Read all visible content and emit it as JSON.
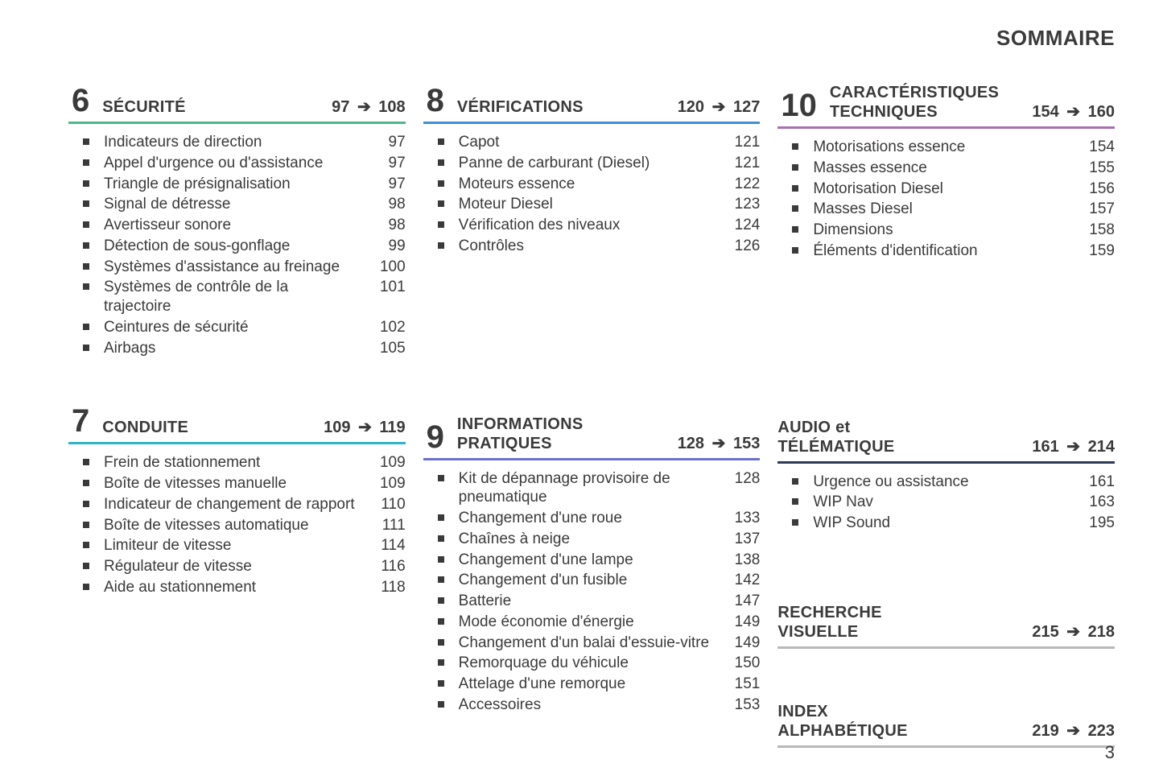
{
  "pageTitle": "SOMMAIRE",
  "pageNumber": "3",
  "arrowGlyph": "➔",
  "colors": {
    "text": "#3a3a3a",
    "sec6": "#4ab88a",
    "sec7": "#2fb4c8",
    "sec8": "#3f8fd6",
    "sec9": "#6a6fcf",
    "sec10": "#a86fb3",
    "audio": "#2b3a55",
    "grey": "#b9b9b9"
  },
  "columns": [
    {
      "sections": [
        {
          "id": "sec6",
          "num": "6",
          "title": "SÉCURITÉ",
          "range": [
            "97",
            "108"
          ],
          "color": "#4ab88a",
          "items": [
            {
              "label": "Indicateurs de direction",
              "page": "97"
            },
            {
              "label": "Appel d'urgence ou d'assistance",
              "page": "97"
            },
            {
              "label": "Triangle de présignalisation",
              "page": "97"
            },
            {
              "label": "Signal de détresse",
              "page": "98"
            },
            {
              "label": "Avertisseur sonore",
              "page": "98"
            },
            {
              "label": "Détection de sous-gonflage",
              "page": "99"
            },
            {
              "label": "Systèmes d'assistance au freinage",
              "page": "100"
            },
            {
              "label": "Systèmes de contrôle de la trajectoire",
              "page": "101"
            },
            {
              "label": "Ceintures de sécurité",
              "page": "102"
            },
            {
              "label": "Airbags",
              "page": "105"
            }
          ]
        },
        {
          "id": "sec7",
          "num": "7",
          "title": "CONDUITE",
          "range": [
            "109",
            "119"
          ],
          "color": "#2fb4c8",
          "items": [
            {
              "label": "Frein de stationnement",
              "page": "109"
            },
            {
              "label": "Boîte de vitesses manuelle",
              "page": "109"
            },
            {
              "label": "Indicateur de changement de rapport",
              "page": "110"
            },
            {
              "label": "Boîte de vitesses automatique",
              "page": "111"
            },
            {
              "label": "Limiteur de vitesse",
              "page": "114"
            },
            {
              "label": "Régulateur de vitesse",
              "page": "116"
            },
            {
              "label": "Aide au stationnement",
              "page": "118"
            }
          ]
        }
      ]
    },
    {
      "sections": [
        {
          "id": "sec8",
          "num": "8",
          "title": "VÉRIFICATIONS",
          "range": [
            "120",
            "127"
          ],
          "color": "#3f8fd6",
          "items": [
            {
              "label": "Capot",
              "page": "121"
            },
            {
              "label": "Panne de carburant (Diesel)",
              "page": "121"
            },
            {
              "label": "Moteurs essence",
              "page": "122"
            },
            {
              "label": "Moteur Diesel",
              "page": "123"
            },
            {
              "label": "Vérification des niveaux",
              "page": "124"
            },
            {
              "label": "Contrôles",
              "page": "126"
            }
          ]
        },
        {
          "id": "sec9",
          "num": "9",
          "title": "INFORMATIONS PRATIQUES",
          "titleLines": [
            "INFORMATIONS",
            "PRATIQUES"
          ],
          "range": [
            "128",
            "153"
          ],
          "color": "#6a6fcf",
          "items": [
            {
              "label": "Kit de dépannage provisoire de pneumatique",
              "page": "128"
            },
            {
              "label": "Changement d'une roue",
              "page": "133"
            },
            {
              "label": "Chaînes à neige",
              "page": "137"
            },
            {
              "label": "Changement d'une lampe",
              "page": "138"
            },
            {
              "label": "Changement d'un fusible",
              "page": "142"
            },
            {
              "label": "Batterie",
              "page": "147"
            },
            {
              "label": "Mode économie d'énergie",
              "page": "149"
            },
            {
              "label": "Changement d'un balai d'essuie-vitre",
              "page": "149"
            },
            {
              "label": "Remorquage du véhicule",
              "page": "150"
            },
            {
              "label": "Attelage d'une remorque",
              "page": "151"
            },
            {
              "label": "Accessoires",
              "page": "153"
            }
          ]
        }
      ]
    },
    {
      "sections": [
        {
          "id": "sec10",
          "num": "10",
          "title": "CARACTÉRISTIQUES TECHNIQUES",
          "titleLines": [
            "CARACTÉRISTIQUES",
            "TECHNIQUES"
          ],
          "range": [
            "154",
            "160"
          ],
          "color": "#a86fb3",
          "items": [
            {
              "label": "Motorisations essence",
              "page": "154"
            },
            {
              "label": "Masses essence",
              "page": "155"
            },
            {
              "label": "Motorisation Diesel",
              "page": "156"
            },
            {
              "label": "Masses Diesel",
              "page": "157"
            },
            {
              "label": "Dimensions",
              "page": "158"
            },
            {
              "label": "Éléments d'identification",
              "page": "159"
            }
          ]
        },
        {
          "id": "audio",
          "num": "",
          "title": "AUDIO et TÉLÉMATIQUE",
          "titleLines": [
            "AUDIO et",
            "TÉLÉMATIQUE"
          ],
          "range": [
            "161",
            "214"
          ],
          "color": "#2b3a55",
          "items": [
            {
              "label": "Urgence ou assistance",
              "page": "161"
            },
            {
              "label": "WIP Nav",
              "page": "163"
            },
            {
              "label": "WIP Sound",
              "page": "195"
            }
          ]
        },
        {
          "id": "recherche",
          "num": "",
          "title": "RECHERCHE VISUELLE",
          "titleLines": [
            "RECHERCHE",
            "VISUELLE"
          ],
          "range": [
            "215",
            "218"
          ],
          "color": "#b9b9b9",
          "items": []
        },
        {
          "id": "index",
          "num": "",
          "title": "INDEX ALPHABÉTIQUE",
          "titleLines": [
            "INDEX",
            "ALPHABÉTIQUE"
          ],
          "range": [
            "219",
            "223"
          ],
          "color": "#b9b9b9",
          "items": []
        }
      ]
    }
  ]
}
